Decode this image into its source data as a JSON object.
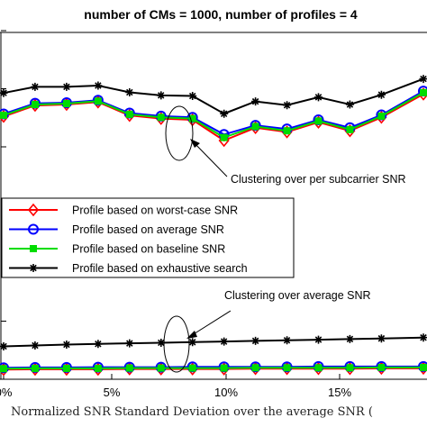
{
  "chart_data": {
    "type": "line",
    "title": "number of CMs = 1000, number of profiles = 4",
    "xlabel": "Normalized SNR Standard Deviation over the average SNR (",
    "ylabel": "",
    "x_ticks": [
      "0%",
      "5%",
      "10%",
      "15%"
    ],
    "xlim": [
      0,
      20
    ],
    "ylim": [
      0,
      1
    ],
    "grid": false,
    "legend_position": "center-left",
    "legend": [
      "Profile based on worst-case SNR",
      "Profile based on average SNR",
      "Profile based on baseline SNR",
      "Profile based on exhaustive search"
    ],
    "annotations": [
      "Clustering over per subcarrier SNR",
      "Clustering over average SNR"
    ],
    "series": [
      {
        "name": "Profile based on worst-case SNR",
        "color": "#ff0000",
        "marker": "diamond",
        "group": "per_subcarrier",
        "x": [
          0,
          1.5,
          3,
          4.5,
          6,
          7.5,
          9,
          10.5,
          12,
          13.5,
          15,
          16.5,
          18,
          20
        ],
        "y": [
          0.837,
          0.873,
          0.876,
          0.884,
          0.84,
          0.83,
          0.826,
          0.758,
          0.8,
          0.786,
          0.818,
          0.79,
          0.834,
          0.91
        ]
      },
      {
        "name": "Profile based on average SNR",
        "color": "#0000ff",
        "marker": "circle",
        "group": "per_subcarrier",
        "x": [
          0,
          1.5,
          3,
          4.5,
          6,
          7.5,
          9,
          10.5,
          12,
          13.5,
          15,
          16.5,
          18,
          20
        ],
        "y": [
          0.845,
          0.88,
          0.882,
          0.89,
          0.848,
          0.838,
          0.834,
          0.778,
          0.808,
          0.796,
          0.826,
          0.8,
          0.842,
          0.92
        ]
      },
      {
        "name": "Profile based on baseline SNR",
        "color": "#00dd00",
        "marker": "square",
        "group": "per_subcarrier",
        "x": [
          0,
          1.5,
          3,
          4.5,
          6,
          7.5,
          9,
          10.5,
          12,
          13.5,
          15,
          16.5,
          18,
          20
        ],
        "y": [
          0.841,
          0.876,
          0.879,
          0.887,
          0.844,
          0.834,
          0.83,
          0.768,
          0.804,
          0.79,
          0.822,
          0.794,
          0.838,
          0.915
        ]
      },
      {
        "name": "Profile based on exhaustive search",
        "color": "#000000",
        "marker": "star",
        "group": "per_subcarrier",
        "x": [
          0,
          1.5,
          3,
          4.5,
          6,
          7.5,
          9,
          10.5,
          12,
          13.5,
          15,
          16.5,
          18,
          20
        ],
        "y": [
          0.914,
          0.934,
          0.934,
          0.938,
          0.916,
          0.906,
          0.904,
          0.846,
          0.886,
          0.874,
          0.9,
          0.876,
          0.908,
          0.96
        ]
      },
      {
        "name": "",
        "color": "#ff0000",
        "marker": "diamond",
        "group": "average",
        "x": [
          0,
          1.5,
          3,
          4.5,
          6,
          7.5,
          9,
          10.5,
          12,
          13.5,
          15,
          16.5,
          18,
          20
        ],
        "y": [
          0.008,
          0.009,
          0.009,
          0.009,
          0.01,
          0.01,
          0.01,
          0.01,
          0.011,
          0.011,
          0.011,
          0.011,
          0.012,
          0.012
        ]
      },
      {
        "name": "",
        "color": "#0000ff",
        "marker": "circle",
        "group": "average",
        "x": [
          0,
          1.5,
          3,
          4.5,
          6,
          7.5,
          9,
          10.5,
          12,
          13.5,
          15,
          16.5,
          18,
          20
        ],
        "y": [
          0.014,
          0.015,
          0.015,
          0.016,
          0.016,
          0.016,
          0.017,
          0.017,
          0.017,
          0.017,
          0.018,
          0.018,
          0.018,
          0.018
        ]
      },
      {
        "name": "",
        "color": "#00dd00",
        "marker": "square",
        "group": "average",
        "x": [
          0,
          1.5,
          3,
          4.5,
          6,
          7.5,
          9,
          10.5,
          12,
          13.5,
          15,
          16.5,
          18,
          20
        ],
        "y": [
          0.011,
          0.012,
          0.012,
          0.012,
          0.013,
          0.013,
          0.013,
          0.013,
          0.014,
          0.014,
          0.014,
          0.014,
          0.015,
          0.015
        ]
      },
      {
        "name": "",
        "color": "#000000",
        "marker": "star",
        "group": "average",
        "x": [
          0,
          1.5,
          3,
          4.5,
          6,
          7.5,
          9,
          10.5,
          12,
          13.5,
          15,
          16.5,
          18,
          20
        ],
        "y": [
          0.084,
          0.087,
          0.09,
          0.092,
          0.094,
          0.096,
          0.098,
          0.1,
          0.102,
          0.104,
          0.106,
          0.108,
          0.11,
          0.113
        ]
      }
    ]
  }
}
